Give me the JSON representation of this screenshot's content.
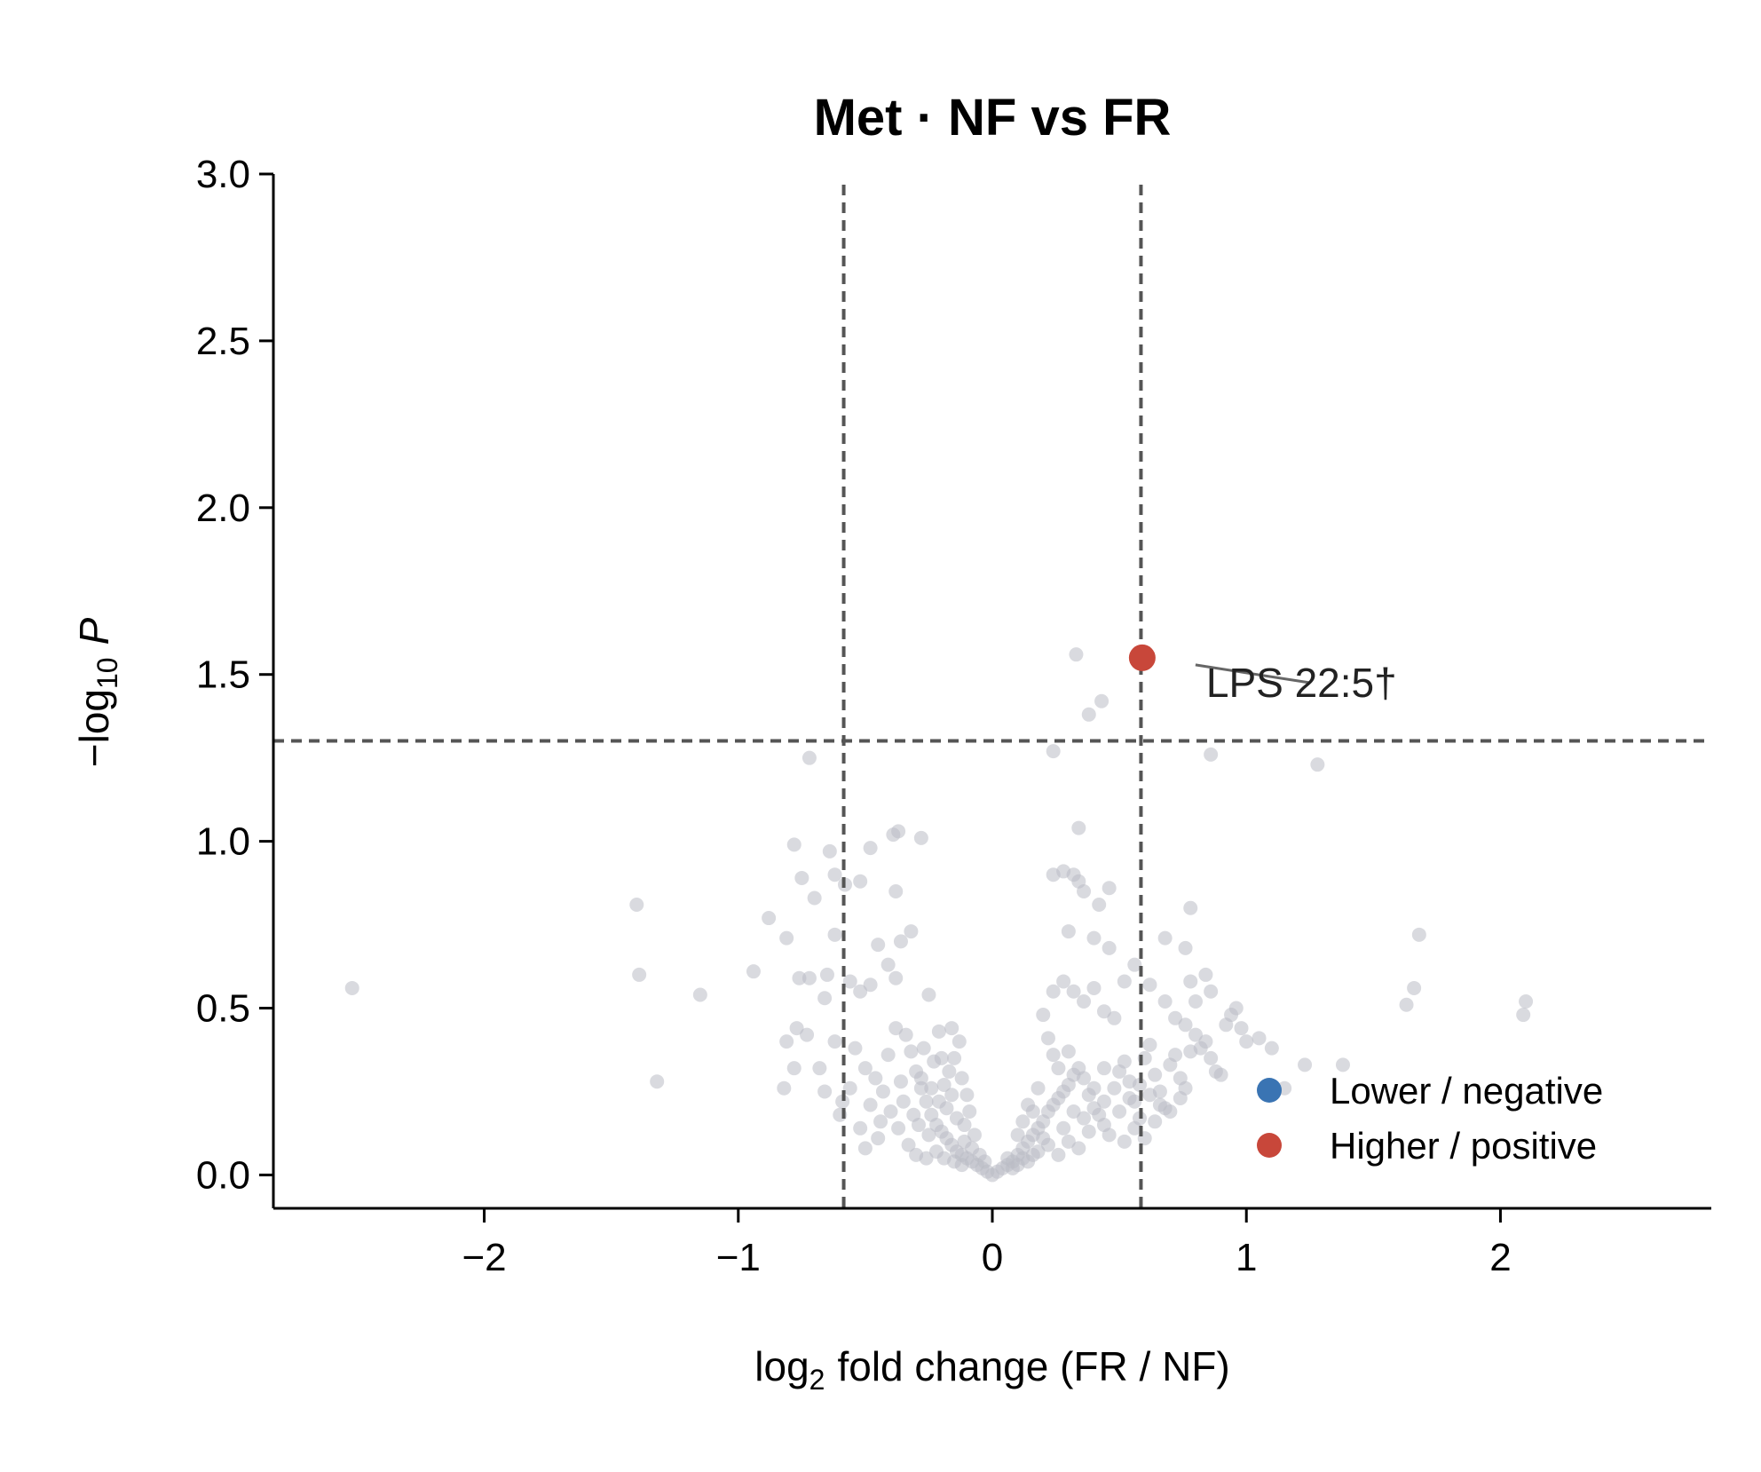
{
  "chart_data": {
    "type": "scatter",
    "title": "Met · NF vs FR",
    "xlabel": {
      "prefix": "log",
      "sub": "2",
      "rest": "fold change (FR / NF)"
    },
    "ylabel": {
      "prefix": "−log",
      "sub": "10",
      "rest": "P"
    },
    "xlim": [
      -2.83,
      2.83
    ],
    "ylim": [
      -0.1,
      3.0
    ],
    "xticks": [
      {
        "value": -2,
        "label": "−2"
      },
      {
        "value": -1,
        "label": "−1"
      },
      {
        "value": 0,
        "label": "0"
      },
      {
        "value": 1,
        "label": "1"
      },
      {
        "value": 2,
        "label": "2"
      }
    ],
    "yticks": [
      {
        "value": 0.0,
        "label": "0.0"
      },
      {
        "value": 0.5,
        "label": "0.5"
      },
      {
        "value": 1.0,
        "label": "1.0"
      },
      {
        "value": 1.5,
        "label": "1.5"
      },
      {
        "value": 2.0,
        "label": "2.0"
      },
      {
        "value": 2.5,
        "label": "2.5"
      },
      {
        "value": 3.0,
        "label": "3.0"
      }
    ],
    "thresholds": {
      "fc": [
        -0.585,
        0.585
      ],
      "p": 1.301
    },
    "grid": false,
    "legend_position": "lower-right",
    "legend": [
      {
        "label": "Lower / negative",
        "color": "#3a74b3"
      },
      {
        "label": "Higher / positive",
        "color": "#c8473a"
      }
    ],
    "colors": {
      "ns": "#b9bcc4",
      "up": "#c8473a",
      "down": "#3a74b3",
      "threshold": "#555555"
    },
    "series": [
      {
        "category": "ns",
        "points": [
          [
            -2.52,
            0.56
          ],
          [
            -1.4,
            0.81
          ],
          [
            -1.39,
            0.6
          ],
          [
            -1.15,
            0.54
          ],
          [
            -1.32,
            0.28
          ],
          [
            -0.72,
            1.25
          ],
          [
            -0.78,
            0.99
          ],
          [
            -0.64,
            0.97
          ],
          [
            -0.48,
            0.98
          ],
          [
            -0.37,
            1.03
          ],
          [
            -0.39,
            1.02
          ],
          [
            -0.28,
            1.01
          ],
          [
            -0.62,
            0.9
          ],
          [
            -0.58,
            0.87
          ],
          [
            -0.52,
            0.88
          ],
          [
            -0.75,
            0.89
          ],
          [
            -0.7,
            0.83
          ],
          [
            -0.88,
            0.77
          ],
          [
            -0.81,
            0.71
          ],
          [
            -0.38,
            0.85
          ],
          [
            -0.32,
            0.73
          ],
          [
            -0.36,
            0.7
          ],
          [
            -0.45,
            0.69
          ],
          [
            -0.62,
            0.72
          ],
          [
            -0.65,
            0.6
          ],
          [
            -0.76,
            0.59
          ],
          [
            -0.94,
            0.61
          ],
          [
            -0.72,
            0.59
          ],
          [
            -0.66,
            0.53
          ],
          [
            -0.56,
            0.58
          ],
          [
            -0.52,
            0.55
          ],
          [
            -0.48,
            0.57
          ],
          [
            -0.41,
            0.63
          ],
          [
            -0.38,
            0.59
          ],
          [
            -0.25,
            0.54
          ],
          [
            -0.81,
            0.4
          ],
          [
            -0.77,
            0.44
          ],
          [
            -0.73,
            0.42
          ],
          [
            -0.82,
            0.26
          ],
          [
            -0.78,
            0.32
          ],
          [
            -0.62,
            0.4
          ],
          [
            -0.59,
            0.22
          ],
          [
            -0.68,
            0.32
          ],
          [
            -0.54,
            0.38
          ],
          [
            -0.5,
            0.32
          ],
          [
            -0.46,
            0.29
          ],
          [
            -0.43,
            0.25
          ],
          [
            -0.41,
            0.36
          ],
          [
            -0.38,
            0.44
          ],
          [
            -0.34,
            0.42
          ],
          [
            -0.32,
            0.37
          ],
          [
            -0.3,
            0.31
          ],
          [
            -0.28,
            0.26
          ],
          [
            -0.26,
            0.22
          ],
          [
            -0.24,
            0.18
          ],
          [
            -0.22,
            0.15
          ],
          [
            -0.2,
            0.13
          ],
          [
            -0.18,
            0.11
          ],
          [
            -0.16,
            0.09
          ],
          [
            -0.14,
            0.07
          ],
          [
            -0.12,
            0.06
          ],
          [
            -0.1,
            0.05
          ],
          [
            -0.08,
            0.04
          ],
          [
            -0.06,
            0.03
          ],
          [
            -0.04,
            0.02
          ],
          [
            -0.02,
            0.01
          ],
          [
            0.0,
            0.0
          ],
          [
            -0.25,
            0.12
          ],
          [
            -0.31,
            0.18
          ],
          [
            -0.35,
            0.22
          ],
          [
            -0.29,
            0.15
          ],
          [
            -0.21,
            0.22
          ],
          [
            -0.19,
            0.27
          ],
          [
            -0.17,
            0.31
          ],
          [
            -0.23,
            0.34
          ],
          [
            -0.27,
            0.38
          ],
          [
            -0.15,
            0.35
          ],
          [
            -0.13,
            0.4
          ],
          [
            -0.16,
            0.44
          ],
          [
            -0.21,
            0.43
          ],
          [
            -0.12,
            0.29
          ],
          [
            -0.1,
            0.24
          ],
          [
            -0.09,
            0.19
          ],
          [
            -0.11,
            0.15
          ],
          [
            -0.07,
            0.12
          ],
          [
            -0.33,
            0.09
          ],
          [
            -0.3,
            0.06
          ],
          [
            -0.26,
            0.05
          ],
          [
            -0.22,
            0.07
          ],
          [
            -0.19,
            0.05
          ],
          [
            -0.15,
            0.04
          ],
          [
            -0.12,
            0.03
          ],
          [
            -0.37,
            0.14
          ],
          [
            -0.4,
            0.19
          ],
          [
            -0.44,
            0.16
          ],
          [
            -0.48,
            0.21
          ],
          [
            -0.52,
            0.14
          ],
          [
            -0.56,
            0.26
          ],
          [
            -0.6,
            0.18
          ],
          [
            -0.66,
            0.25
          ],
          [
            -0.45,
            0.11
          ],
          [
            -0.5,
            0.08
          ],
          [
            -0.36,
            0.28
          ],
          [
            -0.18,
            0.2
          ],
          [
            -0.14,
            0.17
          ],
          [
            -0.08,
            0.08
          ],
          [
            -0.05,
            0.06
          ],
          [
            -0.03,
            0.04
          ],
          [
            -0.28,
            0.29
          ],
          [
            -0.24,
            0.26
          ],
          [
            -0.2,
            0.35
          ],
          [
            -0.11,
            0.1
          ],
          [
            -0.16,
            0.24
          ],
          [
            0.02,
            0.01
          ],
          [
            0.04,
            0.02
          ],
          [
            0.06,
            0.03
          ],
          [
            0.08,
            0.04
          ],
          [
            0.1,
            0.06
          ],
          [
            0.12,
            0.08
          ],
          [
            0.14,
            0.1
          ],
          [
            0.16,
            0.12
          ],
          [
            0.18,
            0.14
          ],
          [
            0.2,
            0.16
          ],
          [
            0.22,
            0.19
          ],
          [
            0.24,
            0.21
          ],
          [
            0.26,
            0.23
          ],
          [
            0.28,
            0.25
          ],
          [
            0.3,
            0.27
          ],
          [
            0.32,
            0.3
          ],
          [
            0.34,
            0.32
          ],
          [
            0.36,
            0.29
          ],
          [
            0.38,
            0.24
          ],
          [
            0.4,
            0.2
          ],
          [
            0.42,
            0.18
          ],
          [
            0.44,
            0.15
          ],
          [
            0.46,
            0.12
          ],
          [
            0.48,
            0.26
          ],
          [
            0.5,
            0.31
          ],
          [
            0.52,
            0.34
          ],
          [
            0.54,
            0.28
          ],
          [
            0.56,
            0.22
          ],
          [
            0.58,
            0.17
          ],
          [
            0.6,
            0.35
          ],
          [
            0.62,
            0.39
          ],
          [
            0.64,
            0.3
          ],
          [
            0.66,
            0.25
          ],
          [
            0.68,
            0.2
          ],
          [
            0.7,
            0.33
          ],
          [
            0.72,
            0.36
          ],
          [
            0.74,
            0.29
          ],
          [
            0.76,
            0.26
          ],
          [
            0.78,
            0.37
          ],
          [
            0.8,
            0.42
          ],
          [
            0.82,
            0.38
          ],
          [
            0.84,
            0.4
          ],
          [
            0.86,
            0.35
          ],
          [
            0.88,
            0.31
          ],
          [
            0.9,
            0.3
          ],
          [
            0.92,
            0.45
          ],
          [
            0.94,
            0.48
          ],
          [
            0.96,
            0.5
          ],
          [
            0.98,
            0.44
          ],
          [
            1.0,
            0.4
          ],
          [
            1.05,
            0.41
          ],
          [
            1.1,
            0.38
          ],
          [
            1.15,
            0.26
          ],
          [
            1.23,
            0.33
          ],
          [
            1.38,
            0.33
          ],
          [
            0.18,
            0.26
          ],
          [
            0.24,
            0.36
          ],
          [
            0.26,
            0.32
          ],
          [
            0.3,
            0.37
          ],
          [
            0.22,
            0.41
          ],
          [
            0.2,
            0.48
          ],
          [
            0.24,
            0.55
          ],
          [
            0.28,
            0.58
          ],
          [
            0.32,
            0.55
          ],
          [
            0.36,
            0.52
          ],
          [
            0.4,
            0.56
          ],
          [
            0.44,
            0.49
          ],
          [
            0.48,
            0.47
          ],
          [
            0.52,
            0.58
          ],
          [
            0.56,
            0.63
          ],
          [
            0.62,
            0.57
          ],
          [
            0.68,
            0.52
          ],
          [
            0.72,
            0.47
          ],
          [
            0.76,
            0.45
          ],
          [
            0.78,
            0.58
          ],
          [
            0.8,
            0.52
          ],
          [
            0.84,
            0.6
          ],
          [
            0.86,
            0.55
          ],
          [
            0.76,
            0.68
          ],
          [
            0.78,
            0.8
          ],
          [
            0.68,
            0.71
          ],
          [
            0.46,
            0.68
          ],
          [
            0.4,
            0.71
          ],
          [
            0.3,
            0.73
          ],
          [
            0.42,
            0.81
          ],
          [
            0.36,
            0.85
          ],
          [
            0.24,
            0.9
          ],
          [
            0.28,
            0.91
          ],
          [
            0.32,
            0.9
          ],
          [
            0.34,
            0.88
          ],
          [
            0.34,
            1.04
          ],
          [
            0.46,
            0.86
          ],
          [
            0.38,
            1.38
          ],
          [
            0.43,
            1.42
          ],
          [
            0.24,
            1.27
          ],
          [
            0.33,
            1.56
          ],
          [
            0.86,
            1.26
          ],
          [
            1.28,
            1.23
          ],
          [
            1.63,
            0.51
          ],
          [
            1.66,
            0.56
          ],
          [
            1.68,
            0.72
          ],
          [
            2.1,
            0.52
          ],
          [
            2.09,
            0.48
          ],
          [
            0.14,
            0.04
          ],
          [
            0.16,
            0.06
          ],
          [
            0.1,
            0.03
          ],
          [
            0.12,
            0.05
          ],
          [
            0.08,
            0.02
          ],
          [
            0.06,
            0.05
          ],
          [
            0.18,
            0.07
          ],
          [
            0.22,
            0.09
          ],
          [
            0.26,
            0.06
          ],
          [
            0.3,
            0.1
          ],
          [
            0.34,
            0.08
          ],
          [
            0.38,
            0.13
          ],
          [
            0.2,
            0.11
          ],
          [
            0.44,
            0.22
          ],
          [
            0.5,
            0.19
          ],
          [
            0.54,
            0.23
          ],
          [
            0.58,
            0.27
          ],
          [
            0.62,
            0.24
          ],
          [
            0.66,
            0.21
          ],
          [
            0.7,
            0.19
          ],
          [
            0.74,
            0.23
          ],
          [
            0.52,
            0.1
          ],
          [
            0.56,
            0.14
          ],
          [
            0.6,
            0.11
          ],
          [
            0.64,
            0.16
          ],
          [
            0.28,
            0.14
          ],
          [
            0.32,
            0.19
          ],
          [
            0.36,
            0.17
          ],
          [
            0.4,
            0.26
          ],
          [
            0.44,
            0.32
          ],
          [
            0.16,
            0.19
          ],
          [
            0.12,
            0.16
          ],
          [
            0.1,
            0.12
          ],
          [
            0.14,
            0.21
          ]
        ]
      },
      {
        "category": "up",
        "points": [
          [
            0.59,
            1.55
          ]
        ],
        "labels": [
          "LPS 22:5†"
        ]
      }
    ]
  }
}
